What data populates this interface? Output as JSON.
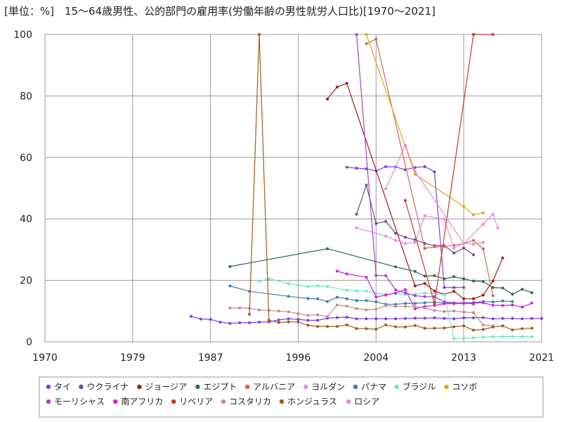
{
  "chart_data": {
    "type": "line",
    "title": "[単位：%]　15〜64歳男性、公的部門の雇用率(労働年齢の男性就労人口比)[1970〜2021]",
    "xlabel": "",
    "ylabel": "",
    "xlim": [
      1970,
      2021
    ],
    "ylim": [
      0,
      100
    ],
    "xticks": [
      1970,
      1979,
      1987,
      1996,
      2004,
      2013,
      2021
    ],
    "yticks": [
      0,
      20,
      40,
      60,
      80,
      100
    ],
    "grid": true,
    "legend_position": "bottom",
    "series": [
      {
        "name": "タイ",
        "color": "#7b3fe4",
        "points": [
          [
            1985,
            8.3
          ],
          [
            1986,
            7.4
          ],
          [
            1987,
            7.3
          ],
          [
            1988,
            6.4
          ],
          [
            1989,
            6.0
          ],
          [
            1990,
            6.2
          ],
          [
            1991,
            6.2
          ],
          [
            1992,
            6.4
          ],
          [
            1993,
            6.5
          ],
          [
            1994,
            7.1
          ],
          [
            1995,
            7.5
          ],
          [
            1996,
            7.3
          ],
          [
            1997,
            7.0
          ],
          [
            1998,
            7.0
          ],
          [
            1999,
            7.7
          ],
          [
            2000,
            7.9
          ],
          [
            2001,
            8.0
          ],
          [
            2002,
            7.5
          ],
          [
            2003,
            7.5
          ],
          [
            2004,
            7.5
          ],
          [
            2005,
            7.5
          ],
          [
            2006,
            7.5
          ],
          [
            2007,
            7.6
          ],
          [
            2008,
            7.7
          ],
          [
            2009,
            7.7
          ],
          [
            2010,
            7.8
          ],
          [
            2011,
            7.6
          ],
          [
            2012,
            7.5
          ],
          [
            2013,
            7.8
          ],
          [
            2014,
            7.8
          ],
          [
            2015,
            7.9
          ],
          [
            2016,
            7.5
          ],
          [
            2017,
            7.6
          ],
          [
            2018,
            7.6
          ],
          [
            2019,
            7.5
          ],
          [
            2020,
            7.6
          ],
          [
            2021,
            7.6
          ]
        ]
      },
      {
        "name": "タイ",
        "color": "#7b3fe4",
        "points": [
          [
            2001,
            56.8
          ],
          [
            2002,
            56.5
          ],
          [
            2003,
            56.3
          ],
          [
            2004,
            55.6
          ],
          [
            2005,
            57.0
          ],
          [
            2006,
            56.9
          ],
          [
            2007,
            56.0
          ],
          [
            2008,
            56.7
          ],
          [
            2009,
            57.0
          ],
          [
            2010,
            55.3
          ],
          [
            2011,
            17.7
          ],
          [
            2012,
            17.7
          ],
          [
            2013,
            17.7
          ]
        ]
      },
      {
        "name": "ウクライナ",
        "color": "#6a4c93",
        "points": [
          [
            2002,
            41.5
          ],
          [
            2003,
            51.0
          ],
          [
            2004,
            38.5
          ],
          [
            2005,
            39.2
          ],
          [
            2006,
            35.3
          ],
          [
            2007,
            34.0
          ],
          [
            2008,
            33.2
          ],
          [
            2009,
            32.0
          ],
          [
            2010,
            31.3
          ],
          [
            2011,
            31.3
          ],
          [
            2012,
            28.9
          ],
          [
            2013,
            30.5
          ],
          [
            2014,
            28.3
          ]
        ]
      },
      {
        "name": "ジョージア",
        "color": "#a01c1c",
        "points": [
          [
            1999,
            79.0
          ],
          [
            2000,
            82.9
          ],
          [
            2001,
            84.1
          ],
          [
            2008,
            18.2
          ],
          [
            2009,
            19.0
          ],
          [
            2010,
            16.5
          ],
          [
            2011,
            15.5
          ],
          [
            2012,
            16.4
          ],
          [
            2013,
            14.0
          ],
          [
            2014,
            14.0
          ],
          [
            2015,
            15.2
          ],
          [
            2016,
            19.8
          ],
          [
            2017,
            27.3
          ]
        ]
      },
      {
        "name": "エジプト",
        "color": "#2e6b4c",
        "points": [
          [
            1989,
            24.5
          ],
          [
            1999,
            30.3
          ],
          [
            2006,
            24.4
          ],
          [
            2008,
            22.9
          ],
          [
            2009,
            21.4
          ],
          [
            2010,
            21.5
          ],
          [
            2011,
            20.5
          ],
          [
            2012,
            21.2
          ],
          [
            2013,
            20.5
          ],
          [
            2014,
            19.8
          ],
          [
            2015,
            19.6
          ],
          [
            2016,
            17.7
          ],
          [
            2017,
            17.5
          ],
          [
            2018,
            15.5
          ],
          [
            2019,
            17.1
          ],
          [
            2020,
            16.0
          ]
        ]
      },
      {
        "name": "アルバニア",
        "color": "#d2695a",
        "points": [
          [
            2003,
            97.0
          ],
          [
            2004,
            98.5
          ],
          [
            2009,
            30.4
          ],
          [
            2010,
            30.9
          ],
          [
            2011,
            31.0
          ],
          [
            2012,
            31.4
          ],
          [
            2013,
            32.0
          ],
          [
            2014,
            33.0
          ],
          [
            2015,
            30.2
          ],
          [
            2016,
            15.0
          ]
        ]
      },
      {
        "name": "ヨルダン",
        "color": "#e58ae8",
        "points": [
          [
            2002,
            37.1
          ],
          [
            2005,
            34.4
          ],
          [
            2006,
            33.0
          ],
          [
            2007,
            32.0
          ],
          [
            2008,
            32.3
          ],
          [
            2009,
            41.0
          ],
          [
            2011,
            39.9
          ],
          [
            2012,
            30.5
          ],
          [
            2013,
            32.1
          ],
          [
            2014,
            31.8
          ],
          [
            2015,
            32.3
          ]
        ]
      },
      {
        "name": "パナマ",
        "color": "#3c7ea6",
        "points": [
          [
            1989,
            18.2
          ],
          [
            1991,
            16.4
          ],
          [
            1995,
            14.8
          ],
          [
            1997,
            14.1
          ],
          [
            1998,
            14.0
          ],
          [
            1999,
            13.1
          ],
          [
            2000,
            14.5
          ],
          [
            2001,
            14.0
          ],
          [
            2002,
            13.4
          ],
          [
            2003,
            13.4
          ],
          [
            2004,
            13.0
          ],
          [
            2005,
            12.2
          ],
          [
            2006,
            12.2
          ],
          [
            2007,
            12.5
          ],
          [
            2008,
            12.5
          ],
          [
            2009,
            12.7
          ],
          [
            2010,
            12.9
          ],
          [
            2011,
            12.6
          ],
          [
            2012,
            12.6
          ],
          [
            2013,
            12.7
          ],
          [
            2014,
            12.8
          ],
          [
            2015,
            13.1
          ],
          [
            2016,
            13.0
          ],
          [
            2017,
            13.3
          ],
          [
            2018,
            13.1
          ]
        ]
      },
      {
        "name": "ブラジル",
        "color": "#6ee8c4",
        "points": [
          [
            1992,
            19.7
          ],
          [
            1993,
            20.5
          ],
          [
            1995,
            19.0
          ],
          [
            1996,
            18.4
          ],
          [
            1997,
            18.0
          ],
          [
            1998,
            18.2
          ],
          [
            1999,
            18.0
          ],
          [
            2001,
            16.8
          ],
          [
            2002,
            16.6
          ],
          [
            2003,
            16.5
          ],
          [
            2004,
            15.8
          ],
          [
            2005,
            15.5
          ],
          [
            2006,
            15.6
          ],
          [
            2007,
            15.4
          ],
          [
            2008,
            15.4
          ],
          [
            2009,
            15.9
          ],
          [
            2011,
            15.4
          ],
          [
            2012,
            1.0
          ],
          [
            2013,
            1.2
          ],
          [
            2014,
            1.3
          ],
          [
            2015,
            1.5
          ],
          [
            2016,
            1.7
          ],
          [
            2017,
            1.7
          ],
          [
            2018,
            1.7
          ],
          [
            2019,
            1.7
          ],
          [
            2020,
            1.7
          ]
        ]
      },
      {
        "name": "コソボ",
        "color": "#e8a317",
        "points": [
          [
            2003,
            100
          ],
          [
            2008,
            54.5
          ],
          [
            2013,
            44.0
          ],
          [
            2014,
            41.3
          ],
          [
            2015,
            42.0
          ]
        ]
      },
      {
        "name": "モーリシャス",
        "color": "#a642c4",
        "points": [
          [
            2002,
            100
          ],
          [
            2004,
            21.6
          ],
          [
            2005,
            21.5
          ],
          [
            2006,
            16.9
          ],
          [
            2007,
            15.9
          ],
          [
            2008,
            15.0
          ],
          [
            2009,
            14.7
          ],
          [
            2010,
            14.7
          ],
          [
            2011,
            13.0
          ],
          [
            2012,
            12.7
          ],
          [
            2013,
            12.6
          ],
          [
            2014,
            12.3
          ]
        ]
      },
      {
        "name": "南アフリカ",
        "color": "#d21fd8",
        "points": [
          [
            2000,
            23.0
          ],
          [
            2001,
            22.1
          ],
          [
            2003,
            21.0
          ],
          [
            2004,
            14.6
          ],
          [
            2005,
            15.2
          ],
          [
            2006,
            15.9
          ],
          [
            2007,
            17.0
          ],
          [
            2008,
            10.7
          ],
          [
            2009,
            11.5
          ],
          [
            2010,
            11.8
          ],
          [
            2011,
            12.4
          ],
          [
            2012,
            12.4
          ],
          [
            2013,
            12.5
          ],
          [
            2014,
            12.6
          ],
          [
            2015,
            12.7
          ],
          [
            2016,
            11.9
          ],
          [
            2017,
            11.8
          ],
          [
            2018,
            12.0
          ],
          [
            2019,
            11.3
          ],
          [
            2020,
            12.6
          ]
        ]
      },
      {
        "name": "リベリア",
        "color": "#c0392b",
        "points": [
          [
            2007,
            46.0
          ],
          [
            2010,
            12.5
          ],
          [
            2014,
            100
          ],
          [
            2016,
            100
          ]
        ]
      },
      {
        "name": "コスタリカ",
        "color": "#c98a8a",
        "points": [
          [
            1989,
            11.0
          ],
          [
            1990,
            11.0
          ],
          [
            1991,
            10.9
          ],
          [
            1992,
            10.4
          ],
          [
            1993,
            10.2
          ],
          [
            1994,
            10.0
          ],
          [
            1995,
            9.8
          ],
          [
            1996,
            9.2
          ],
          [
            1997,
            8.6
          ],
          [
            1998,
            8.8
          ],
          [
            1999,
            8.2
          ],
          [
            2000,
            12.0
          ],
          [
            2001,
            11.6
          ],
          [
            2002,
            10.8
          ],
          [
            2003,
            10.4
          ],
          [
            2004,
            10.6
          ],
          [
            2005,
            11.8
          ],
          [
            2006,
            11.5
          ],
          [
            2007,
            11.5
          ],
          [
            2008,
            11.4
          ],
          [
            2009,
            11.0
          ],
          [
            2010,
            10.2
          ],
          [
            2011,
            9.9
          ],
          [
            2012,
            10.0
          ],
          [
            2013,
            9.7
          ],
          [
            2014,
            9.5
          ],
          [
            2015,
            5.5
          ],
          [
            2016,
            5.2
          ]
        ]
      },
      {
        "name": "ホンジュラス",
        "color": "#a65a1a",
        "points": [
          [
            1991,
            9.0
          ],
          [
            1992,
            100
          ],
          [
            1993,
            7.0
          ],
          [
            1994,
            6.3
          ],
          [
            1995,
            6.5
          ],
          [
            1996,
            6.5
          ],
          [
            1997,
            5.4
          ],
          [
            1998,
            5.0
          ],
          [
            1999,
            5.0
          ],
          [
            2000,
            5.0
          ],
          [
            2001,
            5.5
          ],
          [
            2002,
            4.3
          ],
          [
            2003,
            4.3
          ],
          [
            2004,
            4.1
          ],
          [
            2005,
            5.5
          ],
          [
            2006,
            4.9
          ],
          [
            2007,
            4.8
          ],
          [
            2008,
            5.3
          ],
          [
            2009,
            4.4
          ],
          [
            2010,
            4.4
          ],
          [
            2011,
            4.5
          ],
          [
            2012,
            4.9
          ],
          [
            2013,
            5.2
          ],
          [
            2014,
            3.8
          ],
          [
            2015,
            4.0
          ],
          [
            2016,
            4.8
          ],
          [
            2017,
            5.2
          ],
          [
            2018,
            3.9
          ],
          [
            2019,
            4.3
          ],
          [
            2020,
            4.4
          ]
        ]
      },
      {
        "name": "ロシア",
        "color": "#e889d6",
        "points": [
          [
            2005,
            49.8
          ],
          [
            2007,
            64.0
          ],
          [
            2008,
            55.5
          ],
          [
            2013,
            32.0
          ],
          [
            2015,
            38.3
          ],
          [
            2016,
            41.5
          ],
          [
            2016.5,
            37.0
          ]
        ]
      }
    ],
    "legend": [
      "タイ",
      "ウクライナ",
      "ジョージア",
      "エジプト",
      "アルバニア",
      "ヨルダン",
      "パナマ",
      "ブラジル",
      "コソボ",
      "モーリシャス",
      "南アフリカ",
      "リベリア",
      "コスタリカ",
      "ホンジュラス",
      "ロシア"
    ],
    "legend_colors": [
      "#7b3fe4",
      "#6a4c93",
      "#a01c1c",
      "#2e6b4c",
      "#d2695a",
      "#e58ae8",
      "#3c7ea6",
      "#6ee8c4",
      "#e8a317",
      "#a642c4",
      "#d21fd8",
      "#c0392b",
      "#c98a8a",
      "#a65a1a",
      "#e889d6"
    ]
  }
}
